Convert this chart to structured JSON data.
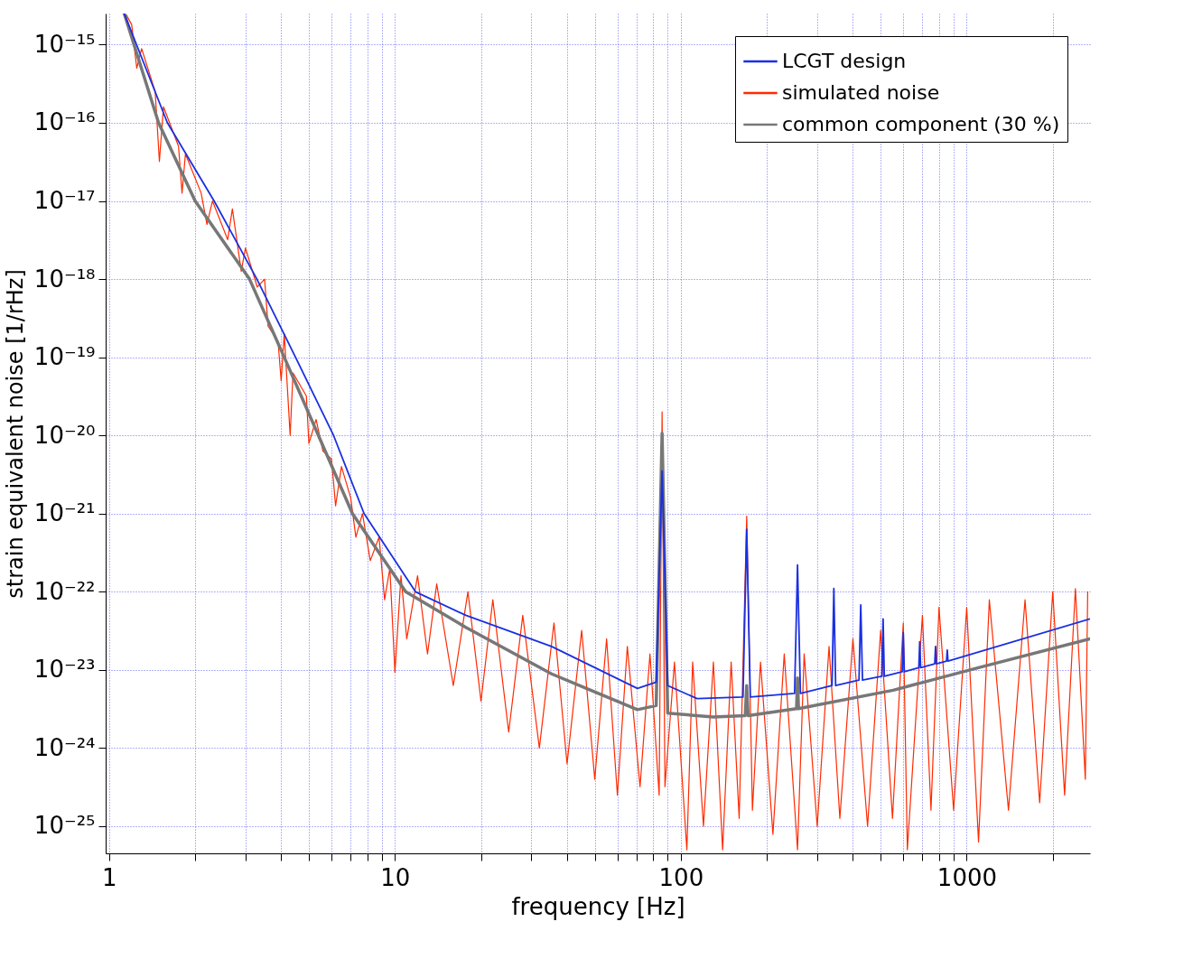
{
  "chart_data": {
    "type": "line",
    "xlabel": "frequency [Hz]",
    "ylabel": "strain equivalent noise [1/rHz]",
    "log": "xy",
    "grid": true,
    "legend": "top right",
    "xlim": [
      0.973,
      2700
    ],
    "ylim": [
      4.5e-26,
      2.5e-15
    ],
    "xticks": [
      1,
      {
        "value": 2,
        "label": null
      },
      {
        "value": 3,
        "label": null
      },
      {
        "value": 4,
        "label": null
      },
      {
        "value": 5,
        "label": null
      },
      {
        "value": 6,
        "label": null
      },
      {
        "value": 7,
        "label": null
      },
      {
        "value": 8,
        "label": null
      },
      {
        "value": 9,
        "label": null
      },
      10,
      {
        "value": 20,
        "label": null
      },
      {
        "value": 30,
        "label": null
      },
      {
        "value": 40,
        "label": null
      },
      {
        "value": 50,
        "label": null
      },
      {
        "value": 60,
        "label": null
      },
      {
        "value": 70,
        "label": null
      },
      {
        "value": 80,
        "label": null
      },
      {
        "value": 90,
        "label": null
      },
      100,
      {
        "value": 200,
        "label": null
      },
      {
        "value": 300,
        "label": null
      },
      {
        "value": 400,
        "label": null
      },
      {
        "value": 500,
        "label": null
      },
      {
        "value": 600,
        "label": null
      },
      {
        "value": 700,
        "label": null
      },
      {
        "value": 800,
        "label": null
      },
      {
        "value": 900,
        "label": null
      },
      1000,
      {
        "value": 2000,
        "label": null
      }
    ],
    "yticks": [
      {
        "value": 1e-15,
        "label": "10⁻¹⁵"
      },
      {
        "value": 1e-16,
        "label": "10⁻¹⁶"
      },
      {
        "value": 1e-17,
        "label": "10⁻¹⁷"
      },
      {
        "value": 1e-18,
        "label": "10⁻¹⁸"
      },
      {
        "value": 1e-19,
        "label": "10⁻¹⁹"
      },
      {
        "value": 1e-20,
        "label": "10⁻²⁰"
      },
      {
        "value": 1e-21,
        "label": "10⁻²¹"
      },
      {
        "value": 1e-22,
        "label": "10⁻²²"
      },
      {
        "value": 1e-23,
        "label": "10⁻²³"
      },
      {
        "value": 1e-24,
        "label": "10⁻²⁴"
      },
      {
        "value": 1e-25,
        "label": "10⁻²⁵"
      }
    ],
    "series": [
      {
        "name": "LCGT design",
        "color": "#1a30e0",
        "x": [
          1.13,
          1.6,
          2.33,
          3.29,
          4.49,
          6.1,
          7.8,
          11.8,
          17.7,
          35.3,
          70.5,
          82,
          86,
          90,
          114,
          165,
          170,
          175,
          250,
          256,
          262,
          338,
          343,
          348,
          420,
          426,
          432,
          505,
          510,
          515,
          595,
          600,
          605,
          680,
          685,
          690,
          773,
          778,
          783,
          850,
          855,
          860,
          2700
        ],
        "values": [
          2.5e-15,
          1e-16,
          1e-17,
          1e-18,
          1e-19,
          1e-20,
          1e-21,
          1e-22,
          5e-23,
          2e-23,
          5.8e-24,
          7e-24,
          3.5e-21,
          6.3e-24,
          4.3e-24,
          4.5e-24,
          6.3e-22,
          4.5e-24,
          5e-24,
          2.2e-22,
          5e-24,
          6.3e-24,
          1.1e-22,
          6.3e-24,
          7.4e-24,
          6.8e-23,
          7.4e-24,
          8.3e-24,
          4.5e-23,
          8.3e-24,
          9.5e-24,
          3e-23,
          9.5e-24,
          1.07e-23,
          2.3e-23,
          1.07e-23,
          1.2e-23,
          2e-23,
          1.2e-23,
          1.3e-23,
          1.8e-23,
          1.3e-23,
          4.5e-23
        ]
      },
      {
        "name": "simulated noise",
        "color": "#ff2a00",
        "x": [
          1.15,
          1.2,
          1.25,
          1.3,
          1.45,
          1.5,
          1.55,
          1.75,
          1.8,
          1.85,
          2.1,
          2.2,
          2.3,
          2.6,
          2.7,
          2.9,
          3.0,
          3.3,
          3.5,
          3.6,
          3.9,
          4.0,
          4.1,
          4.3,
          4.4,
          4.9,
          5.0,
          5.3,
          5.6,
          6.0,
          6.2,
          6.5,
          7.0,
          7.3,
          7.7,
          8.2,
          8.8,
          9.2,
          9.6,
          10,
          10.5,
          11,
          12,
          13,
          14,
          16,
          18,
          20,
          22,
          25,
          28,
          32,
          36,
          40,
          45,
          50,
          55,
          60,
          65,
          72,
          78,
          84,
          86,
          88,
          95,
          105,
          110,
          120,
          130,
          140,
          150,
          160,
          170,
          178,
          190,
          210,
          230,
          256,
          270,
          300,
          330,
          360,
          400,
          450,
          500,
          550,
          600,
          620,
          700,
          750,
          800,
          900,
          1000,
          1100,
          1200,
          1400,
          1600,
          1800,
          2000,
          2200,
          2400,
          2600,
          2650
        ],
        "values": [
          2.4e-15,
          1.8e-15,
          5e-16,
          8.9e-16,
          2.5e-16,
          3.2e-17,
          1.6e-16,
          5e-17,
          1.26e-17,
          4e-17,
          1.26e-17,
          5e-18,
          1e-17,
          3.2e-18,
          7.9e-18,
          1.26e-18,
          2.5e-18,
          7.9e-19,
          1e-18,
          2.5e-19,
          1.6e-19,
          5e-20,
          2e-19,
          1e-20,
          6.3e-20,
          3.2e-20,
          7.9e-21,
          1.6e-20,
          6.3e-21,
          5e-21,
          1.26e-21,
          4e-21,
          1.6e-21,
          5e-22,
          1e-21,
          2.5e-22,
          5e-22,
          7.9e-23,
          2e-22,
          9.3e-24,
          1.6e-22,
          2.5e-23,
          1.6e-22,
          1.6e-23,
          1.26e-22,
          6.3e-24,
          1e-22,
          4e-24,
          7.9e-23,
          1.6e-24,
          5e-23,
          1e-24,
          4e-23,
          6.3e-25,
          3.2e-23,
          4e-25,
          2.5e-23,
          2.5e-25,
          2e-23,
          3.2e-25,
          1.6e-23,
          2.5e-25,
          2e-20,
          3.2e-25,
          1.26e-23,
          5e-26,
          1.26e-23,
          1e-25,
          1.26e-23,
          5e-26,
          1.26e-23,
          1.26e-25,
          9.3e-22,
          1.6e-25,
          1.26e-23,
          7.9e-26,
          1.6e-23,
          5e-26,
          1.6e-23,
          1e-25,
          2e-23,
          1.26e-25,
          2.5e-23,
          1e-25,
          3.2e-23,
          1.26e-25,
          4e-23,
          5e-26,
          5e-23,
          1.6e-25,
          6.3e-23,
          1.6e-25,
          6.3e-23,
          6.3e-26,
          7.9e-23,
          1.6e-25,
          7.9e-23,
          2e-25,
          1e-22,
          2.5e-25,
          1.1e-22,
          4e-25,
          1e-22
        ]
      },
      {
        "name": "common component (30 %)",
        "color": "#777777",
        "x": [
          1.13,
          1.49,
          2.0,
          3.1,
          4.1,
          5.4,
          7.1,
          10.9,
          17.7,
          35.3,
          70.5,
          82,
          86,
          90,
          130,
          168,
          170,
          172,
          254,
          256,
          258,
          553,
          1100,
          2700
        ],
        "values": [
          2.5e-15,
          1e-16,
          1e-17,
          1e-18,
          1e-19,
          1e-20,
          1e-21,
          1e-22,
          3.5e-23,
          8.9e-24,
          3.1e-24,
          3.5e-24,
          1.07e-20,
          2.8e-24,
          2.5e-24,
          2.6e-24,
          6.3e-24,
          2.6e-24,
          3.2e-24,
          7.9e-24,
          3.2e-24,
          5.5e-24,
          1.07e-23,
          2.5e-23
        ]
      }
    ]
  }
}
